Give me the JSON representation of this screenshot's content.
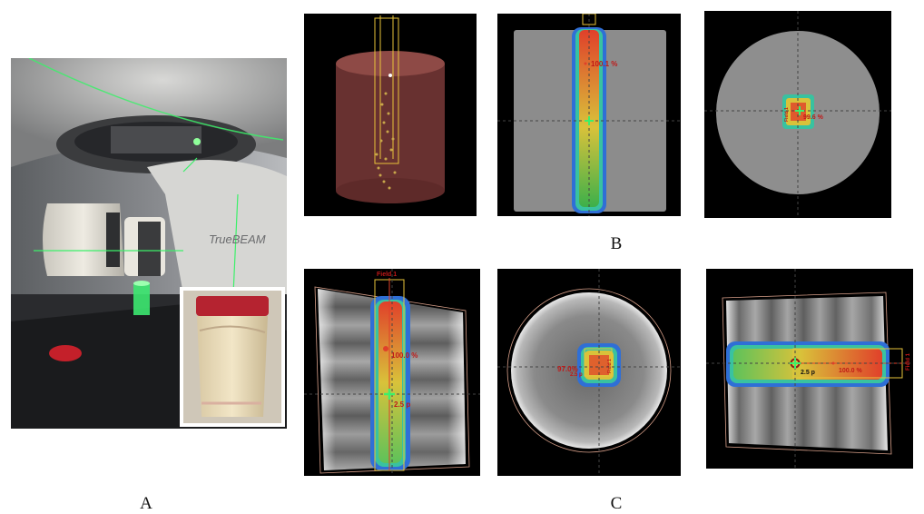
{
  "figure": {
    "panel_labels": {
      "a": "A",
      "b": "B",
      "c": "C"
    },
    "photo": {
      "machine_brand": "TrueBEAM"
    },
    "plan_annotations": {
      "b2_dose": "100.1 %",
      "b3_dose": "99.6 %",
      "b3_field": "Field 1",
      "c1_field": "Field 1",
      "c1_dose": "100.0 %",
      "c1_point": "2.5 p",
      "c2_dose": "97.0%",
      "c2_point": "2.5 p",
      "c2_field": "Field 1",
      "c3_point": "2.5 p",
      "c3_dose": "100.0 %",
      "c3_field": "Field 1"
    },
    "colors": {
      "laser_green": "#3cf06a",
      "dose_red": "#e0402a",
      "field_yellow": "#e8c43a",
      "contour_pink": "#d9a08a"
    }
  }
}
